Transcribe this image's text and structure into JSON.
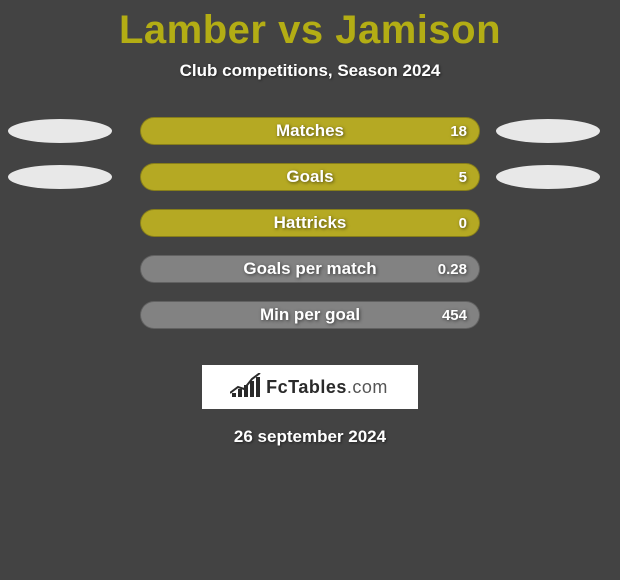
{
  "background_color": "#434343",
  "title": {
    "text": "Lamber vs Jamison",
    "color": "#b3ad14",
    "fontsize": 40
  },
  "subtitle": {
    "text": "Club competitions, Season 2024",
    "color": "#ffffff",
    "fontsize": 17
  },
  "stats": {
    "pill_width": 340,
    "pill_height": 28,
    "pill_radius": 14,
    "label_color": "#ffffff",
    "label_fontsize": 17,
    "value_color": "#ffffff",
    "value_fontsize": 15,
    "ellipse_color": "#e8e8e8",
    "rows": [
      {
        "label": "Matches",
        "value": "18",
        "fill": "#b5a923",
        "has_ellipses": true
      },
      {
        "label": "Goals",
        "value": "5",
        "fill": "#b5a923",
        "has_ellipses": true
      },
      {
        "label": "Hattricks",
        "value": "0",
        "fill": "#b5a923",
        "has_ellipses": false
      },
      {
        "label": "Goals per match",
        "value": "0.28",
        "fill": "#828282",
        "has_ellipses": false
      },
      {
        "label": "Min per goal",
        "value": "454",
        "fill": "#828282",
        "has_ellipses": false
      }
    ]
  },
  "logo": {
    "box_bg": "#ffffff",
    "text_pre": "Fc",
    "text_main": "Tables",
    "text_post": ".com",
    "text_color": "#2a2a2a",
    "bar_heights": [
      4,
      8,
      12,
      16,
      20
    ]
  },
  "date": {
    "text": "26 september 2024",
    "color": "#ffffff",
    "fontsize": 17
  }
}
